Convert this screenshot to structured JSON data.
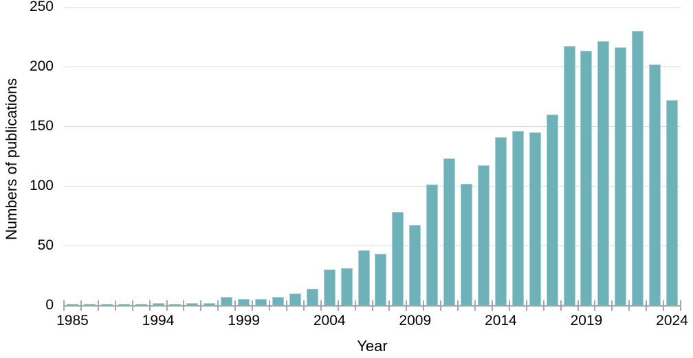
{
  "chart_data": {
    "type": "bar",
    "title": "",
    "xlabel": "Year",
    "ylabel": "Numbers of publications",
    "ylim": [
      0,
      250
    ],
    "yticks": [
      0,
      50,
      100,
      150,
      200,
      250
    ],
    "grid": "horizontal",
    "legend": "none",
    "categories": [
      "1985",
      "",
      "",
      "",
      "",
      "1994",
      "",
      "",
      "",
      "",
      "1999",
      "",
      "",
      "",
      "",
      "2004",
      "",
      "",
      "",
      "",
      "2009",
      "",
      "",
      "",
      "",
      "2014",
      "",
      "",
      "",
      "",
      "2019",
      "",
      "",
      "",
      "",
      "2024"
    ],
    "values": [
      1,
      1,
      1,
      1,
      1,
      2,
      1,
      2,
      2,
      7,
      5,
      5,
      7,
      10,
      14,
      30,
      31,
      46,
      43,
      78,
      67,
      101,
      123,
      102,
      117,
      141,
      146,
      145,
      160,
      217,
      213,
      221,
      216,
      230,
      202,
      172
    ],
    "x_tick_labels_shown": [
      "1985",
      "1994",
      "1999",
      "2004",
      "2009",
      "2014",
      "2019",
      "2024"
    ]
  },
  "colors": {
    "bar_fill": "#6db2b8",
    "bar_edge": "#a9d0d4",
    "gridline": "#d9d9d9",
    "axis_line": "#a6a6a6",
    "tick": "#a6a6a6",
    "text": "#000000",
    "background": "#ffffff"
  }
}
